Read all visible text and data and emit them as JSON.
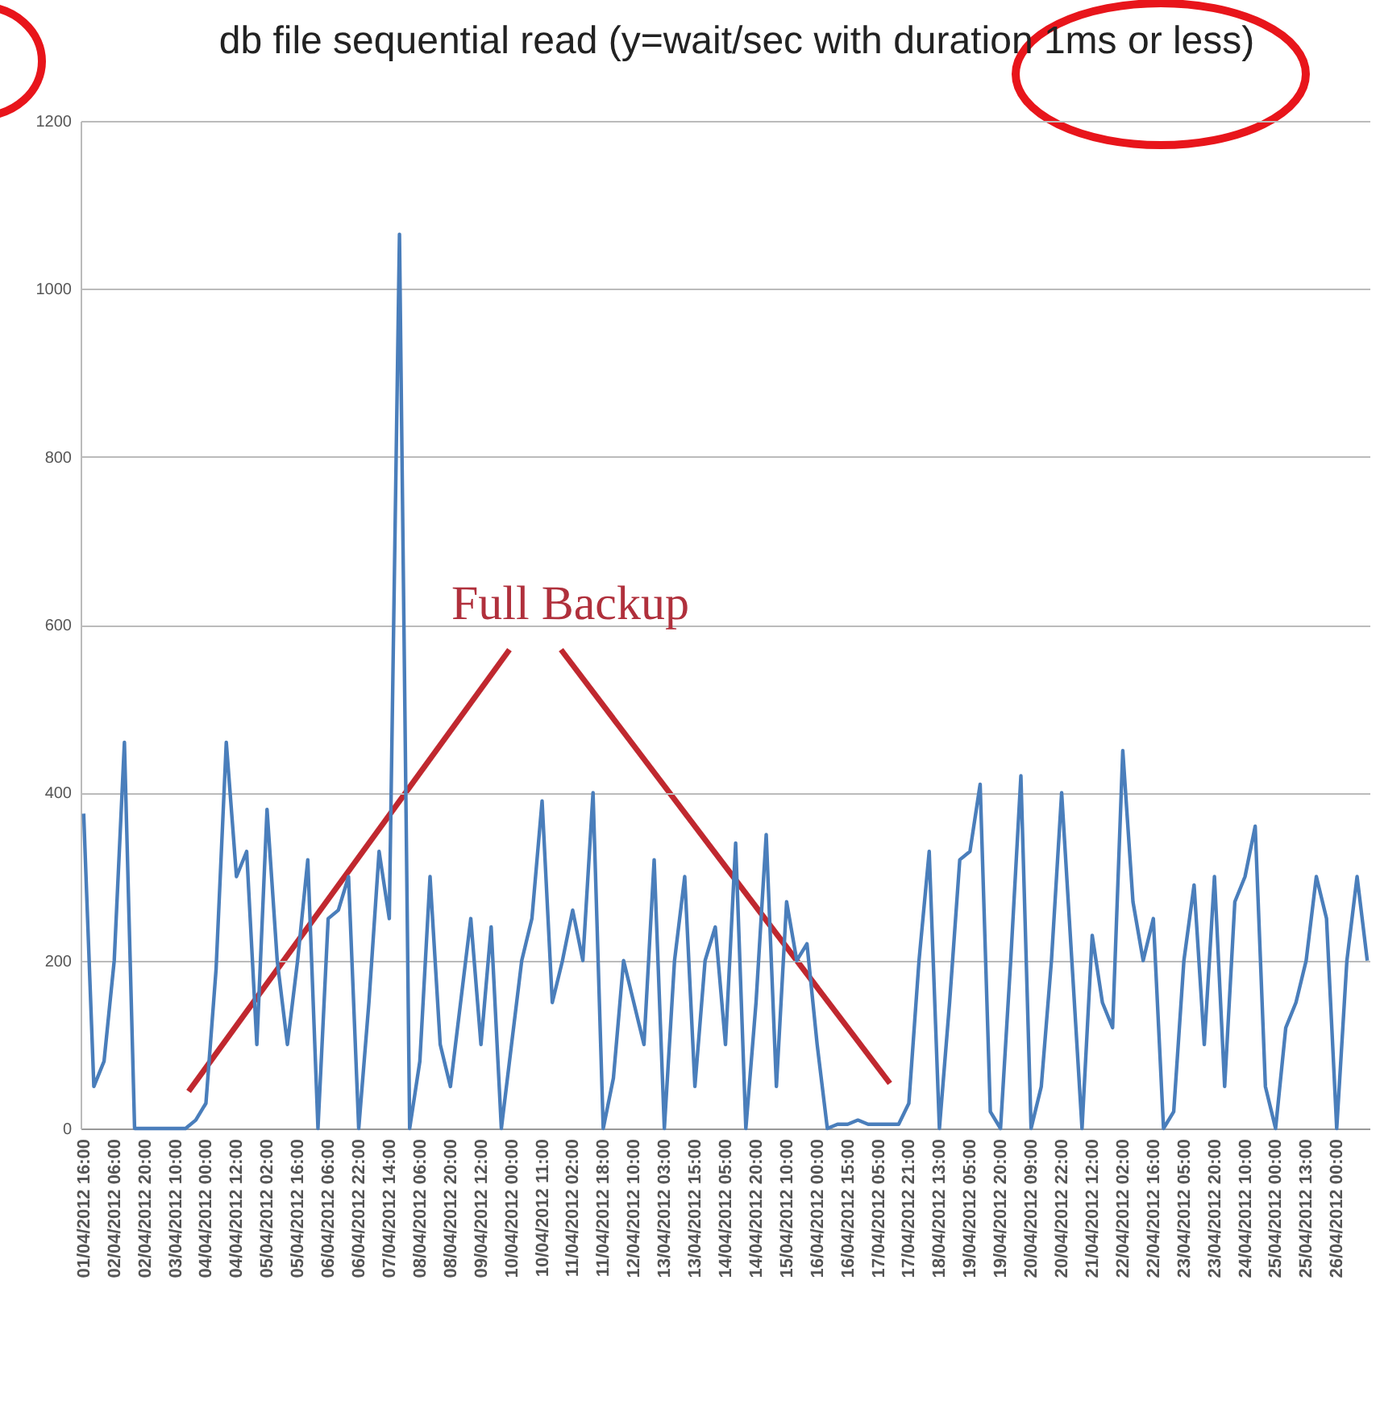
{
  "chart_data": {
    "type": "line",
    "title": "db file sequential read (y=wait/sec with duration 1ms or less)",
    "categories": [
      "01/04/2012 16:00",
      null,
      null,
      "02/04/2012 06:00",
      null,
      null,
      "02/04/2012 20:00",
      null,
      null,
      "03/04/2012 10:00",
      null,
      null,
      "04/04/2012 00:00",
      null,
      null,
      "04/04/2012 12:00",
      null,
      null,
      "05/04/2012 02:00",
      null,
      null,
      "05/04/2012 16:00",
      null,
      null,
      "06/04/2012 06:00",
      null,
      null,
      "06/04/2012 22:00",
      null,
      null,
      "07/04/2012 14:00",
      null,
      null,
      "08/04/2012 06:00",
      null,
      null,
      "08/04/2012 20:00",
      null,
      null,
      "09/04/2012 12:00",
      null,
      null,
      "10/04/2012 00:00",
      null,
      null,
      "10/04/2012 11:00",
      null,
      null,
      "11/04/2012 02:00",
      null,
      null,
      "11/04/2012 18:00",
      null,
      null,
      "12/04/2012 10:00",
      null,
      null,
      "13/04/2012 03:00",
      null,
      null,
      "13/04/2012 15:00",
      null,
      null,
      "14/04/2012 05:00",
      null,
      null,
      "14/04/2012 20:00",
      null,
      null,
      "15/04/2012 10:00",
      null,
      null,
      "16/04/2012 00:00",
      null,
      null,
      "16/04/2012 15:00",
      null,
      null,
      "17/04/2012 05:00",
      null,
      null,
      "17/04/2012 21:00",
      null,
      null,
      "18/04/2012 13:00",
      null,
      null,
      "19/04/2012 05:00",
      null,
      null,
      "19/04/2012 20:00",
      null,
      null,
      "20/04/2012 09:00",
      null,
      null,
      "20/04/2012 22:00",
      null,
      null,
      "21/04/2012 12:00",
      null,
      null,
      "22/04/2012 02:00",
      null,
      null,
      "22/04/2012 16:00",
      null,
      null,
      "23/04/2012 05:00",
      null,
      null,
      "23/04/2012 20:00",
      null,
      null,
      "24/04/2012 10:00",
      null,
      null,
      "25/04/2012 00:00",
      null,
      null,
      "25/04/2012 13:00",
      null,
      null,
      "26/04/2012 00:00",
      null,
      null,
      null
    ],
    "series": [
      {
        "color": "#4a7ebb",
        "values": [
          375,
          50,
          80,
          200,
          460,
          0,
          0,
          0,
          0,
          0,
          0,
          10,
          30,
          190,
          460,
          300,
          330,
          100,
          380,
          200,
          100,
          200,
          320,
          0,
          250,
          260,
          300,
          0,
          150,
          330,
          250,
          1065,
          0,
          80,
          300,
          100,
          50,
          150,
          250,
          100,
          240,
          0,
          100,
          200,
          250,
          390,
          150,
          200,
          260,
          200,
          400,
          0,
          60,
          200,
          150,
          100,
          320,
          0,
          200,
          300,
          50,
          200,
          240,
          100,
          340,
          0,
          150,
          350,
          50,
          270,
          200,
          220,
          100,
          0,
          5,
          5,
          10,
          5,
          5,
          5,
          5,
          30,
          200,
          330,
          0,
          150,
          320,
          330,
          410,
          20,
          0,
          200,
          420,
          0,
          50,
          200,
          400,
          200,
          0,
          230,
          150,
          120,
          450,
          270,
          200,
          250,
          0,
          20,
          200,
          290,
          100,
          300,
          50,
          270,
          300,
          360,
          50,
          0,
          120,
          150,
          200,
          300,
          250,
          0,
          200,
          300,
          200
        ]
      }
    ],
    "ylim": [
      0,
      1200
    ],
    "yticks": [
      0,
      200,
      400,
      600,
      800,
      {
        "value": 1000,
        "label": "1000"
      },
      {
        "value": 1200,
        "label": "1200"
      }
    ],
    "grid": "y",
    "marker": "none",
    "line_style": "solid",
    "annotations": [
      "Full Backup"
    ]
  }
}
